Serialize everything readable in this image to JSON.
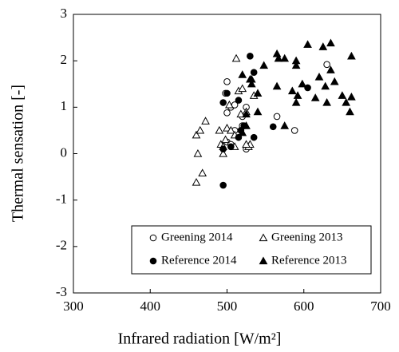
{
  "chart_data": {
    "type": "scatter",
    "xlabel": "Infrared radiation [W/m²]",
    "ylabel": "Thermal sensation [-]",
    "xlim": [
      300,
      700
    ],
    "xticks": [
      300,
      400,
      500,
      600,
      700
    ],
    "ylim": [
      -3,
      3
    ],
    "yticks": [
      -3,
      -2,
      -1,
      0,
      1,
      2,
      3
    ],
    "series": [
      {
        "name": "Greening 2014",
        "color": "#000000",
        "marker": "circle",
        "filled": false,
        "x": [
          500,
          498,
          505,
          510,
          500,
          520,
          525,
          500,
          505,
          510,
          525,
          565,
          588,
          630,
          520
        ],
        "values": [
          1.55,
          1.3,
          1.0,
          1.05,
          0.88,
          0.8,
          1.0,
          0.25,
          0.2,
          0.5,
          0.1,
          0.8,
          0.5,
          1.92,
          0.6
        ]
      },
      {
        "name": "Greening 2013",
        "color": "#000000",
        "marker": "triangle",
        "filled": false,
        "x": [
          460,
          465,
          462,
          460,
          468,
          472,
          490,
          492,
          495,
          500,
          505,
          498,
          510,
          512,
          515,
          520,
          525,
          528,
          530,
          535,
          510,
          518,
          503,
          495,
          525
        ],
        "values": [
          0.4,
          0.5,
          0.0,
          -0.62,
          -0.42,
          0.7,
          0.5,
          0.2,
          0.15,
          0.55,
          0.5,
          0.3,
          0.4,
          2.05,
          1.35,
          1.4,
          0.9,
          0.15,
          0.2,
          1.25,
          0.15,
          0.85,
          1.05,
          0.0,
          0.2
        ]
      },
      {
        "name": "Reference 2014",
        "color": "#000000",
        "marker": "circle",
        "filled": true,
        "x": [
          495,
          495,
          500,
          505,
          515,
          515,
          518,
          522,
          530,
          535,
          535,
          560,
          605,
          495
        ],
        "values": [
          -0.68,
          1.1,
          1.3,
          0.15,
          0.35,
          1.15,
          0.5,
          0.6,
          2.1,
          1.75,
          0.35,
          0.58,
          1.42,
          0.1
        ]
      },
      {
        "name": "Reference 2013",
        "color": "#000000",
        "marker": "triangle",
        "filled": true,
        "x": [
          520,
          525,
          530,
          532,
          540,
          548,
          540,
          565,
          565,
          567,
          575,
          575,
          585,
          590,
          590,
          592,
          590,
          598,
          605,
          615,
          620,
          625,
          628,
          635,
          635,
          630,
          640,
          650,
          655,
          660,
          662,
          662,
          520,
          525,
          532
        ],
        "values": [
          1.7,
          0.6,
          1.6,
          1.5,
          1.3,
          1.9,
          0.9,
          2.15,
          1.45,
          2.05,
          2.05,
          0.6,
          1.35,
          2.0,
          1.9,
          1.25,
          1.1,
          1.5,
          2.35,
          1.2,
          1.65,
          2.3,
          1.45,
          2.38,
          1.8,
          1.1,
          1.55,
          1.25,
          1.1,
          0.9,
          2.1,
          1.22,
          0.45,
          0.85,
          1.6
        ]
      }
    ]
  }
}
